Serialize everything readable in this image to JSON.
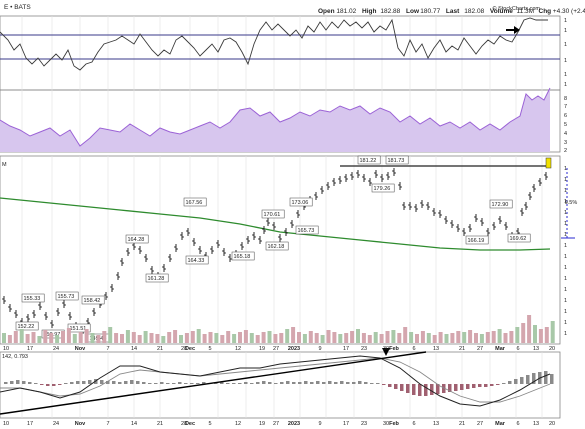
{
  "header": {
    "symbol_text": "E • BATS",
    "watermark": "© StockCharts.com",
    "quote": [
      {
        "k": "Open",
        "v": "181.02"
      },
      {
        "k": "High",
        "v": "182.88"
      },
      {
        "k": "Low",
        "v": "180.77"
      },
      {
        "k": "Last",
        "v": "182.08"
      },
      {
        "k": "Volume",
        "v": "11.3M"
      },
      {
        "k": "Chg",
        "v": "+4.30 (+2.41%)"
      }
    ]
  },
  "axes": {
    "x_ticks": [
      "10",
      "17",
      "24",
      "Nov",
      "7",
      "14",
      "21",
      "28",
      "Dec",
      "5",
      "12",
      "19",
      "27",
      "2023",
      "9",
      "17",
      "23",
      "30",
      "Feb",
      "6",
      "13",
      "21",
      "27",
      "Mar",
      "6",
      "13",
      "20"
    ],
    "right_ticks_rsi": [
      "8",
      "7",
      "6",
      "5",
      "4",
      "3",
      "2"
    ],
    "right_ticks_price": [
      "1",
      "1",
      "1",
      "1",
      "1",
      "1",
      "1",
      "1",
      "1",
      "1",
      "1",
      "1",
      "1",
      "1",
      "1",
      "1"
    ],
    "macd_label": "142, 0.793",
    "price_left_label": "M"
  },
  "annotations": {
    "pct_label": "9.5%"
  },
  "colors": {
    "rsi_line": "#3a3a3a",
    "band_line": "#3a3a8a",
    "purple_fill": "#d7c6ee",
    "purple_line": "#9b62d6",
    "ma_line": "#2e8b2e",
    "resistance": "#222222",
    "volume_bar": "#d4a6ae",
    "volume_bar_up": "#a8c8a8",
    "macd_line": "#222222",
    "signal_line": "#888888",
    "hist_pos": "#c9a9b0",
    "hist_neg": "#a06070",
    "dashed_blue": "#2a2ad0",
    "highlight": "#f0e000"
  },
  "chart_data": [
    {
      "type": "line",
      "panel": "top-oscillator",
      "title": "",
      "reference_lines": [
        "upper band",
        "lower band"
      ]
    },
    {
      "type": "area",
      "panel": "purple-indicator",
      "title": ""
    },
    {
      "type": "line",
      "panel": "price",
      "price_labels": [
        "155.33",
        "155.73",
        "158.42",
        "164.28",
        "161.28",
        "167.56",
        "164.33",
        "165.18",
        "170.61",
        "162.18",
        "165.73",
        "173.06",
        "181.22",
        "181.73",
        "179.26",
        "166.19",
        "172.90",
        "169.62",
        "152.22",
        "151.51",
        "150.97",
        "149.44"
      ],
      "resistance_level": 181.73,
      "projected_move": "9.5%"
    },
    {
      "type": "bar",
      "panel": "volume",
      "title": ""
    },
    {
      "type": "line",
      "panel": "macd",
      "label": "142, 0.793"
    }
  ]
}
